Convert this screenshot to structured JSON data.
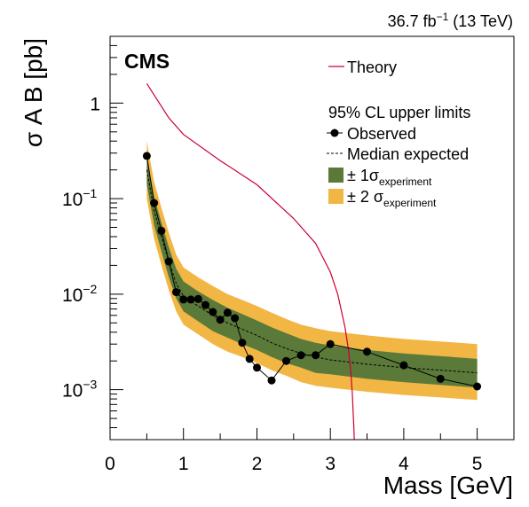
{
  "chart_data": {
    "type": "line",
    "lumi_prefix": "36.7 fb",
    "lumi_sup": "−1",
    "lumi_suffix": " (13 TeV)",
    "experiment_label": "CMS",
    "xlabel": "Mass [GeV]",
    "ylabel": "σ  A B [pb]",
    "xlim": [
      0,
      5.5
    ],
    "ylim": [
      0.0003,
      5
    ],
    "yscale": "log",
    "x_ticks": [
      0,
      1,
      2,
      3,
      4,
      5
    ],
    "x_tick_labels": [
      "0",
      "1",
      "2",
      "3",
      "4",
      "5"
    ],
    "y_tick_labels": [
      {
        "value": 1,
        "base": "1",
        "exp": ""
      },
      {
        "value": 0.1,
        "base": "10",
        "exp": "−1"
      },
      {
        "value": 0.01,
        "base": "10",
        "exp": "−2"
      },
      {
        "value": 0.001,
        "base": "10",
        "exp": "−3"
      }
    ],
    "legend": {
      "placement": "top-right",
      "theory": "Theory",
      "header": "95% CL upper limits",
      "observed": "Observed",
      "expected": "Median expected",
      "band1_prefix": "± 1σ",
      "band1_sub": "experiment",
      "band2_prefix": "± 2 σ",
      "band2_sub": "experiment"
    },
    "colors": {
      "theory": "#cc0033",
      "band1": "#5b7a3a",
      "band2": "#f2b645",
      "observed": "#000000",
      "expected": "#000000"
    },
    "observed": {
      "x": [
        0.5,
        0.6,
        0.7,
        0.8,
        0.9,
        1.0,
        1.1,
        1.2,
        1.3,
        1.4,
        1.5,
        1.6,
        1.7,
        1.8,
        1.9,
        2.0,
        2.2,
        2.4,
        2.6,
        2.8,
        3.0,
        3.5,
        4.0,
        4.5,
        5.0
      ],
      "y": [
        0.28,
        0.09,
        0.046,
        0.022,
        0.0105,
        0.0088,
        0.0088,
        0.0089,
        0.0077,
        0.0065,
        0.0054,
        0.0064,
        0.0056,
        0.0031,
        0.0021,
        0.0017,
        0.00125,
        0.002,
        0.0023,
        0.0023,
        0.003,
        0.0025,
        0.0018,
        0.0013,
        0.00108
      ]
    },
    "expected": {
      "x": [
        0.5,
        0.6,
        0.7,
        0.8,
        0.9,
        1.0,
        1.2,
        1.4,
        1.6,
        1.8,
        2.0,
        2.2,
        2.4,
        2.6,
        2.8,
        3.0,
        3.5,
        4.0,
        4.5,
        5.0
      ],
      "y": [
        0.2,
        0.075,
        0.04,
        0.022,
        0.013,
        0.0095,
        0.0075,
        0.006,
        0.005,
        0.0043,
        0.0037,
        0.0031,
        0.0027,
        0.0024,
        0.0022,
        0.00205,
        0.00185,
        0.0017,
        0.0016,
        0.0015
      ]
    },
    "band_1sigma": {
      "lower": [
        0.14,
        0.053,
        0.028,
        0.015,
        0.009,
        0.0066,
        0.0052,
        0.0041,
        0.0035,
        0.003,
        0.0026,
        0.0022,
        0.0019,
        0.0017,
        0.0015,
        0.00145,
        0.0013,
        0.0012,
        0.00112,
        0.00105
      ],
      "upper": [
        0.28,
        0.105,
        0.056,
        0.031,
        0.0185,
        0.0136,
        0.0107,
        0.0087,
        0.0072,
        0.0062,
        0.0053,
        0.0045,
        0.0039,
        0.0034,
        0.0031,
        0.0029,
        0.0026,
        0.0024,
        0.00225,
        0.0021
      ]
    },
    "band_2sigma": {
      "lower": [
        0.1,
        0.038,
        0.02,
        0.011,
        0.0066,
        0.0048,
        0.0038,
        0.003,
        0.0025,
        0.0022,
        0.0019,
        0.0016,
        0.0014,
        0.0012,
        0.0011,
        0.00105,
        0.00095,
        0.00088,
        0.00083,
        0.00078
      ],
      "upper": [
        0.4,
        0.15,
        0.08,
        0.044,
        0.026,
        0.019,
        0.015,
        0.0122,
        0.01,
        0.0087,
        0.0075,
        0.0064,
        0.0055,
        0.0048,
        0.0044,
        0.0041,
        0.0037,
        0.0034,
        0.0032,
        0.003
      ]
    },
    "theory": {
      "x": [
        0.5,
        0.8,
        1.0,
        1.5,
        2.0,
        2.5,
        2.8,
        3.0,
        3.1,
        3.2,
        3.25,
        3.28,
        3.3,
        3.31,
        3.32,
        3.325
      ],
      "y": [
        1.6,
        0.7,
        0.47,
        0.25,
        0.14,
        0.062,
        0.034,
        0.017,
        0.01,
        0.0045,
        0.0025,
        0.0015,
        0.0009,
        0.0006,
        0.0004,
        0.0003
      ]
    }
  }
}
